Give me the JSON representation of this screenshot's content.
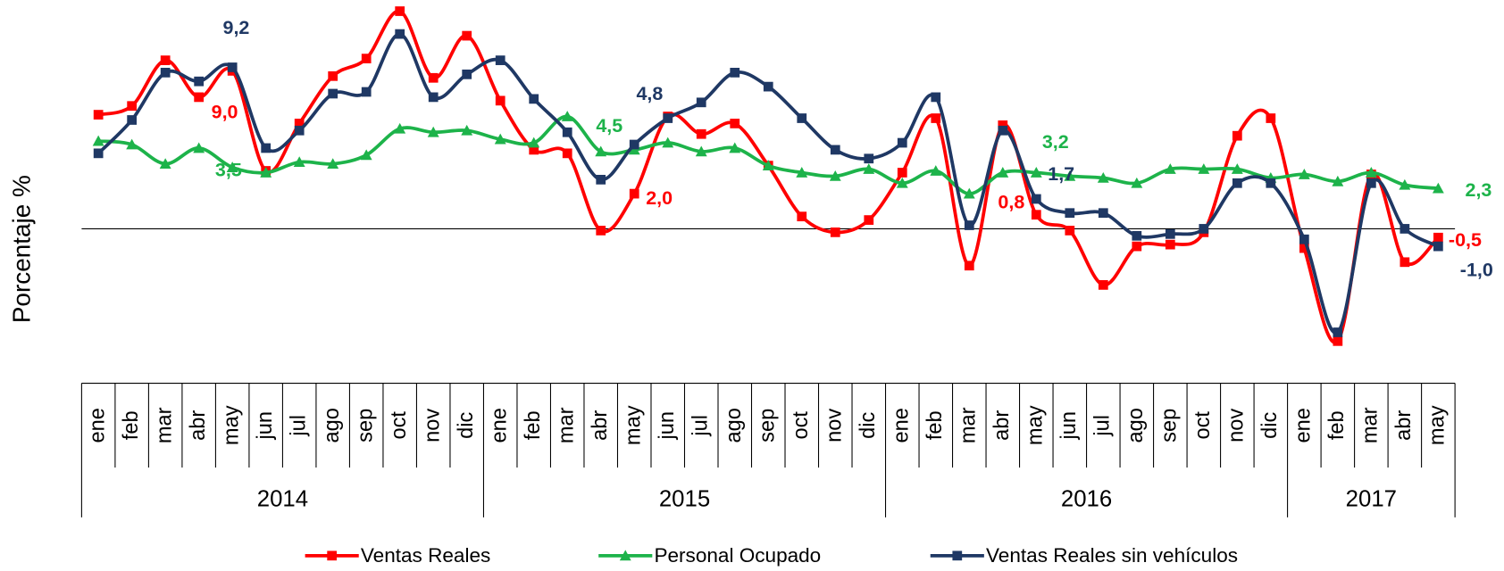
{
  "chart_data": {
    "type": "line",
    "y_label": "Porcentaje %",
    "categories": [
      "ene",
      "feb",
      "mar",
      "abr",
      "may",
      "jun",
      "jul",
      "ago",
      "sep",
      "oct",
      "nov",
      "dic",
      "ene",
      "feb",
      "mar",
      "abr",
      "may",
      "jun",
      "jul",
      "ago",
      "sep",
      "oct",
      "nov",
      "dic",
      "ene",
      "feb",
      "mar",
      "abr",
      "may",
      "jun",
      "jul",
      "ago",
      "sep",
      "oct",
      "nov",
      "dic",
      "ene",
      "feb",
      "mar",
      "abr",
      "may"
    ],
    "years": [
      "2014",
      "2015",
      "2016",
      "2017"
    ],
    "ylim": [
      -8.8,
      12.6
    ],
    "series": [
      {
        "name": "Ventas Reales",
        "color": "#ff0000",
        "marker": "square",
        "values": [
          6.5,
          7.0,
          9.6,
          7.5,
          9.0,
          3.3,
          6.0,
          8.7,
          9.7,
          12.4,
          8.6,
          11.0,
          7.3,
          4.5,
          4.3,
          -0.1,
          2.0,
          6.4,
          5.4,
          6.0,
          3.6,
          0.7,
          -0.2,
          0.5,
          3.2,
          6.3,
          -2.1,
          5.9,
          0.8,
          -0.1,
          -3.2,
          -1.0,
          -0.9,
          -0.2,
          5.3,
          6.3,
          -1.1,
          -6.4,
          3.1,
          -1.9,
          -0.5
        ],
        "value_labels": [
          null,
          null,
          null,
          null,
          "9,0",
          null,
          null,
          null,
          null,
          null,
          null,
          null,
          null,
          null,
          null,
          null,
          "2,0",
          null,
          null,
          null,
          null,
          null,
          null,
          null,
          null,
          null,
          null,
          null,
          "0,8",
          null,
          null,
          null,
          null,
          null,
          null,
          null,
          null,
          null,
          null,
          null,
          "-0,5"
        ]
      },
      {
        "name": "Personal Ocupado",
        "color": "#1db34a",
        "marker": "triangle",
        "values": [
          5.0,
          4.8,
          3.7,
          4.6,
          3.5,
          3.2,
          3.8,
          3.7,
          4.2,
          5.7,
          5.5,
          5.6,
          5.1,
          4.9,
          6.4,
          4.4,
          4.5,
          4.9,
          4.4,
          4.6,
          3.6,
          3.2,
          3.0,
          3.4,
          2.6,
          3.3,
          2.0,
          3.2,
          3.2,
          3.0,
          2.9,
          2.6,
          3.4,
          3.4,
          3.4,
          2.9,
          3.1,
          2.7,
          3.2,
          2.5,
          2.3
        ],
        "value_labels": [
          null,
          null,
          null,
          null,
          "3,5",
          null,
          null,
          null,
          null,
          null,
          null,
          null,
          null,
          null,
          null,
          null,
          "4,5",
          null,
          null,
          null,
          null,
          null,
          null,
          null,
          null,
          null,
          null,
          null,
          "3,2",
          null,
          null,
          null,
          null,
          null,
          null,
          null,
          null,
          null,
          null,
          null,
          "2,3"
        ]
      },
      {
        "name": "Ventas Reales sin  vehículos",
        "color": "#1f3864",
        "marker": "square",
        "values": [
          4.3,
          6.2,
          8.9,
          8.4,
          9.2,
          4.6,
          5.6,
          7.7,
          7.8,
          11.1,
          7.5,
          8.8,
          9.6,
          7.4,
          5.5,
          2.8,
          4.8,
          6.3,
          7.2,
          8.9,
          8.1,
          6.3,
          4.5,
          4.0,
          4.9,
          7.5,
          0.2,
          5.6,
          1.7,
          0.9,
          0.9,
          -0.4,
          -0.3,
          0.0,
          2.6,
          2.6,
          -0.6,
          -5.9,
          2.6,
          0.0,
          -1.0
        ],
        "value_labels": [
          null,
          null,
          null,
          null,
          "9,2",
          null,
          null,
          null,
          null,
          null,
          null,
          null,
          null,
          null,
          null,
          null,
          "4,8",
          null,
          null,
          null,
          null,
          null,
          null,
          null,
          null,
          null,
          null,
          null,
          "1,7",
          null,
          null,
          null,
          null,
          null,
          null,
          null,
          null,
          null,
          null,
          null,
          "-1,0"
        ]
      }
    ]
  }
}
